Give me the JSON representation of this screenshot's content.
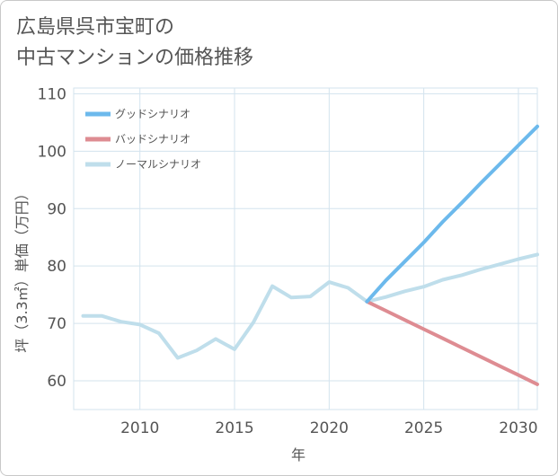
{
  "title": {
    "line1": "広島県呉市宝町の",
    "line2": "中古マンションの価格推移"
  },
  "chart_data": {
    "type": "line",
    "title": "広島県呉市宝町の中古マンションの価格推移",
    "xlabel": "年",
    "ylabel": "坪（3.3㎡）単価（万円）",
    "xlim": [
      2006.5,
      2031
    ],
    "ylim": [
      55,
      111
    ],
    "x_ticks": [
      2010,
      2015,
      2020,
      2025,
      2030
    ],
    "y_ticks": [
      60,
      70,
      80,
      90,
      100,
      110
    ],
    "grid": true,
    "legend_position": "top-left",
    "series": [
      {
        "name": "グッドシナリオ",
        "color": "#6cb9ec",
        "x": [
          2022,
          2023,
          2024,
          2025,
          2026,
          2027,
          2028,
          2029,
          2030,
          2031
        ],
        "y": [
          73.8,
          77.5,
          80.8,
          84.1,
          87.7,
          91.0,
          94.4,
          97.7,
          101.0,
          104.3
        ]
      },
      {
        "name": "バッドシナリオ",
        "color": "#de8c92",
        "x": [
          2022,
          2023,
          2024,
          2025,
          2026,
          2027,
          2028,
          2029,
          2030,
          2031
        ],
        "y": [
          73.8,
          72.2,
          70.6,
          69.0,
          67.4,
          65.8,
          64.2,
          62.6,
          61.0,
          59.4
        ]
      },
      {
        "name": "ノーマルシナリオ",
        "color": "#bfdeeb",
        "x": [
          2007,
          2008,
          2009,
          2010,
          2011,
          2012,
          2013,
          2014,
          2015,
          2016,
          2017,
          2018,
          2019,
          2020,
          2021,
          2022,
          2023,
          2024,
          2025,
          2026,
          2027,
          2028,
          2029,
          2030,
          2031
        ],
        "y": [
          71.3,
          71.3,
          70.3,
          69.8,
          68.3,
          64.0,
          65.3,
          67.3,
          65.5,
          70.2,
          76.5,
          74.5,
          74.7,
          77.2,
          76.2,
          73.8,
          74.6,
          75.6,
          76.4,
          77.6,
          78.4,
          79.4,
          80.3,
          81.2,
          82.0
        ]
      }
    ]
  }
}
